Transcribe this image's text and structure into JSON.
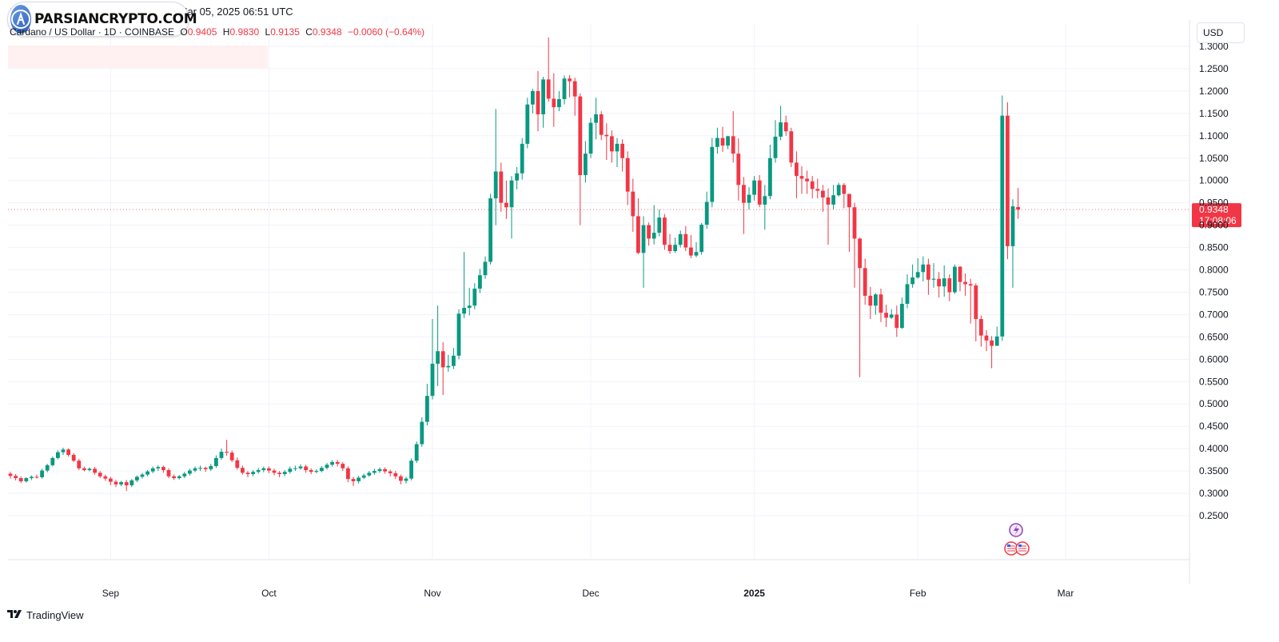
{
  "header": {
    "caption": "ADAUSD chart by TradingView.com, Mar 05, 2025 06:51 UTC",
    "logo_text": "PARSIANCRYPTO.COM"
  },
  "symbol_bar": {
    "title": "Cardano / US Dollar · 1D · COINBASE",
    "open_label": "O",
    "open": "0.9405",
    "high_label": "H",
    "high": "0.9830",
    "low_label": "L",
    "low": "0.9135",
    "close_label": "C",
    "close": "0.9348",
    "change": "−0.0060 (−0.64%)"
  },
  "currency_button": "USD",
  "price_tag": {
    "price": "0.9348",
    "countdown": "17:08:06"
  },
  "footer": {
    "brand": "TradingView",
    "brand_icon": "tradingview-logo-icon"
  },
  "colors": {
    "up": "#089981",
    "down": "#f23645",
    "grid": "#f0f3fa",
    "text": "#131722"
  },
  "chart_data": {
    "type": "candlestick",
    "title": "Cardano / US Dollar · 1D · COINBASE",
    "ylim": [
      0.2,
      1.32
    ],
    "y_ticks": [
      "1.3000",
      "1.2500",
      "1.2000",
      "1.1500",
      "1.1000",
      "1.0500",
      "1.0000",
      "0.9500",
      "0.9000",
      "0.8500",
      "0.8000",
      "0.7500",
      "0.7000",
      "0.6500",
      "0.6000",
      "0.5500",
      "0.5000",
      "0.4500",
      "0.4000",
      "0.3500",
      "0.3000",
      "0.2500"
    ],
    "x_labels": [
      {
        "label": "Sep",
        "index": 19,
        "bold": false
      },
      {
        "label": "Oct",
        "index": 49,
        "bold": false
      },
      {
        "label": "Nov",
        "index": 80,
        "bold": false
      },
      {
        "label": "Dec",
        "index": 110,
        "bold": false
      },
      {
        "label": "2025",
        "index": 141,
        "bold": true
      },
      {
        "label": "Feb",
        "index": 172,
        "bold": false
      },
      {
        "label": "Mar",
        "index": 200,
        "bold": false
      }
    ],
    "last_price": 0.9348,
    "candles_close": [
      0.339,
      0.334,
      0.327,
      0.334,
      0.337,
      0.336,
      0.351,
      0.363,
      0.379,
      0.392,
      0.398,
      0.386,
      0.373,
      0.356,
      0.352,
      0.355,
      0.346,
      0.338,
      0.333,
      0.326,
      0.32,
      0.325,
      0.318,
      0.329,
      0.337,
      0.342,
      0.349,
      0.356,
      0.359,
      0.352,
      0.338,
      0.334,
      0.338,
      0.344,
      0.351,
      0.356,
      0.357,
      0.354,
      0.361,
      0.379,
      0.393,
      0.391,
      0.374,
      0.357,
      0.346,
      0.343,
      0.348,
      0.352,
      0.356,
      0.351,
      0.346,
      0.343,
      0.348,
      0.355,
      0.356,
      0.36,
      0.352,
      0.348,
      0.35,
      0.357,
      0.364,
      0.37,
      0.366,
      0.356,
      0.332,
      0.327,
      0.335,
      0.34,
      0.346,
      0.35,
      0.354,
      0.349,
      0.345,
      0.338,
      0.328,
      0.333,
      0.373,
      0.41,
      0.46,
      0.518,
      0.59,
      0.618,
      0.582,
      0.585,
      0.608,
      0.702,
      0.715,
      0.72,
      0.758,
      0.788,
      0.818,
      0.96,
      1.02,
      0.95,
      0.94,
      1.0,
      1.016,
      1.082,
      1.17,
      1.2,
      1.148,
      1.226,
      1.183,
      1.164,
      1.182,
      1.228,
      1.222,
      1.188,
      1.012,
      1.06,
      1.129,
      1.148,
      1.102,
      1.099,
      1.065,
      1.082,
      1.05,
      0.975,
      0.92,
      0.838,
      0.9,
      0.87,
      0.883,
      0.917,
      0.856,
      0.842,
      0.856,
      0.88,
      0.85,
      0.832,
      0.84,
      0.901,
      0.952,
      1.075,
      1.095,
      1.078,
      1.099,
      1.06,
      0.99,
      0.95,
      0.968,
      1.0,
      0.946,
      0.965,
      1.05,
      1.098,
      1.13,
      1.11,
      1.04,
      1.01,
      1.004,
      0.998,
      0.981,
      0.977,
      0.962,
      0.946,
      0.967,
      0.99,
      0.97,
      0.94,
      0.87,
      0.804,
      0.742,
      0.72,
      0.745,
      0.704,
      0.693,
      0.7,
      0.67,
      0.724,
      0.768,
      0.783,
      0.795,
      0.812,
      0.778,
      0.78,
      0.763,
      0.781,
      0.75,
      0.807,
      0.773,
      0.768,
      0.765,
      0.69,
      0.653,
      0.642,
      0.63,
      0.651,
      1.145,
      0.853,
      0.942,
      0.9348
    ],
    "candles_open": [
      0.344,
      0.339,
      0.334,
      0.327,
      0.334,
      0.337,
      0.336,
      0.351,
      0.363,
      0.379,
      0.392,
      0.398,
      0.386,
      0.373,
      0.356,
      0.352,
      0.355,
      0.346,
      0.338,
      0.333,
      0.326,
      0.32,
      0.325,
      0.318,
      0.329,
      0.337,
      0.342,
      0.349,
      0.356,
      0.359,
      0.352,
      0.338,
      0.334,
      0.338,
      0.344,
      0.351,
      0.356,
      0.357,
      0.354,
      0.361,
      0.379,
      0.393,
      0.391,
      0.374,
      0.357,
      0.346,
      0.343,
      0.348,
      0.352,
      0.356,
      0.351,
      0.346,
      0.343,
      0.348,
      0.355,
      0.356,
      0.36,
      0.352,
      0.348,
      0.35,
      0.357,
      0.364,
      0.37,
      0.366,
      0.356,
      0.332,
      0.327,
      0.335,
      0.34,
      0.346,
      0.35,
      0.354,
      0.349,
      0.345,
      0.338,
      0.328,
      0.333,
      0.373,
      0.41,
      0.46,
      0.518,
      0.59,
      0.618,
      0.582,
      0.585,
      0.608,
      0.702,
      0.715,
      0.72,
      0.758,
      0.788,
      0.818,
      0.96,
      1.02,
      0.95,
      0.94,
      1.0,
      1.016,
      1.082,
      1.17,
      1.2,
      1.148,
      1.226,
      1.183,
      1.164,
      1.182,
      1.228,
      1.222,
      1.188,
      1.012,
      1.06,
      1.129,
      1.148,
      1.102,
      1.099,
      1.065,
      1.082,
      1.05,
      0.975,
      0.92,
      0.838,
      0.9,
      0.87,
      0.883,
      0.917,
      0.856,
      0.842,
      0.856,
      0.88,
      0.85,
      0.832,
      0.84,
      0.901,
      0.952,
      1.075,
      1.095,
      1.078,
      1.099,
      1.06,
      0.99,
      0.95,
      0.968,
      1.0,
      0.946,
      0.965,
      1.05,
      1.098,
      1.13,
      1.11,
      1.04,
      1.01,
      1.004,
      0.998,
      0.981,
      0.977,
      0.962,
      0.946,
      0.967,
      0.99,
      0.97,
      0.94,
      0.87,
      0.804,
      0.742,
      0.72,
      0.745,
      0.704,
      0.693,
      0.7,
      0.67,
      0.724,
      0.768,
      0.783,
      0.795,
      0.812,
      0.778,
      0.78,
      0.763,
      0.781,
      0.75,
      0.807,
      0.773,
      0.768,
      0.765,
      0.69,
      0.653,
      0.642,
      0.63,
      0.651,
      1.145,
      0.853,
      0.9405
    ],
    "candles_high": [
      0.348,
      0.343,
      0.338,
      0.336,
      0.34,
      0.342,
      0.355,
      0.366,
      0.382,
      0.396,
      0.402,
      0.401,
      0.39,
      0.377,
      0.36,
      0.358,
      0.359,
      0.35,
      0.342,
      0.337,
      0.33,
      0.328,
      0.33,
      0.332,
      0.34,
      0.346,
      0.352,
      0.36,
      0.363,
      0.362,
      0.356,
      0.342,
      0.341,
      0.348,
      0.355,
      0.36,
      0.362,
      0.36,
      0.366,
      0.385,
      0.4,
      0.42,
      0.396,
      0.38,
      0.362,
      0.35,
      0.352,
      0.357,
      0.36,
      0.36,
      0.355,
      0.35,
      0.352,
      0.36,
      0.362,
      0.365,
      0.364,
      0.356,
      0.354,
      0.361,
      0.368,
      0.374,
      0.375,
      0.37,
      0.36,
      0.337,
      0.339,
      0.344,
      0.35,
      0.355,
      0.358,
      0.358,
      0.353,
      0.35,
      0.342,
      0.337,
      0.378,
      0.416,
      0.47,
      0.545,
      0.69,
      0.72,
      0.638,
      0.61,
      0.625,
      0.712,
      0.84,
      0.76,
      0.77,
      0.802,
      0.83,
      0.97,
      1.16,
      1.04,
      1.0,
      1.01,
      1.03,
      1.095,
      1.185,
      1.205,
      1.245,
      1.232,
      1.32,
      1.24,
      1.2,
      1.235,
      1.236,
      1.23,
      1.195,
      1.088,
      1.14,
      1.185,
      1.155,
      1.128,
      1.112,
      1.095,
      1.092,
      1.065,
      1.004,
      0.96,
      0.92,
      0.906,
      0.945,
      0.935,
      0.925,
      0.88,
      0.872,
      0.888,
      0.898,
      0.878,
      0.862,
      0.905,
      0.975,
      1.095,
      1.118,
      1.12,
      1.1,
      1.155,
      1.094,
      1.008,
      0.985,
      1.01,
      1.012,
      0.99,
      1.08,
      1.135,
      1.167,
      1.145,
      1.118,
      1.065,
      1.032,
      1.022,
      1.01,
      1.004,
      0.99,
      0.982,
      0.99,
      0.995,
      0.994,
      0.97,
      0.95,
      0.872,
      0.825,
      0.762,
      0.748,
      0.758,
      0.722,
      0.712,
      0.72,
      0.738,
      0.79,
      0.812,
      0.826,
      0.83,
      0.825,
      0.815,
      0.795,
      0.81,
      0.79,
      0.812,
      0.808,
      0.792,
      0.78,
      0.77,
      0.698,
      0.665,
      0.652,
      0.673,
      1.19,
      1.175,
      0.958,
      0.983
    ],
    "candles_low": [
      0.333,
      0.329,
      0.323,
      0.324,
      0.33,
      0.333,
      0.333,
      0.347,
      0.36,
      0.376,
      0.386,
      0.382,
      0.37,
      0.352,
      0.349,
      0.349,
      0.342,
      0.334,
      0.328,
      0.318,
      0.314,
      0.316,
      0.305,
      0.314,
      0.325,
      0.333,
      0.338,
      0.345,
      0.35,
      0.346,
      0.334,
      0.33,
      0.331,
      0.334,
      0.34,
      0.347,
      0.35,
      0.348,
      0.35,
      0.357,
      0.375,
      0.384,
      0.37,
      0.353,
      0.342,
      0.336,
      0.338,
      0.344,
      0.347,
      0.345,
      0.34,
      0.336,
      0.338,
      0.344,
      0.35,
      0.353,
      0.346,
      0.343,
      0.345,
      0.347,
      0.353,
      0.36,
      0.36,
      0.35,
      0.325,
      0.316,
      0.322,
      0.332,
      0.337,
      0.342,
      0.346,
      0.344,
      0.338,
      0.332,
      0.32,
      0.322,
      0.329,
      0.368,
      0.404,
      0.452,
      0.51,
      0.54,
      0.52,
      0.572,
      0.578,
      0.6,
      0.692,
      0.698,
      0.712,
      0.748,
      0.78,
      0.812,
      0.9,
      0.93,
      0.914,
      0.87,
      0.98,
      1.002,
      1.072,
      1.15,
      1.11,
      1.118,
      1.176,
      1.12,
      1.155,
      1.17,
      1.186,
      1.145,
      0.9,
      0.995,
      1.05,
      1.092,
      1.09,
      1.046,
      1.04,
      1.03,
      1.02,
      0.945,
      0.885,
      0.835,
      0.76,
      0.854,
      0.857,
      0.875,
      0.845,
      0.836,
      0.838,
      0.85,
      0.842,
      0.826,
      0.828,
      0.834,
      0.892,
      0.94,
      1.06,
      1.064,
      1.07,
      1.04,
      0.955,
      0.88,
      0.935,
      0.955,
      0.94,
      0.89,
      0.958,
      1.04,
      1.09,
      1.1,
      1.03,
      0.96,
      0.97,
      0.97,
      0.96,
      0.96,
      0.93,
      0.856,
      0.935,
      0.964,
      0.938,
      0.84,
      0.76,
      0.56,
      0.722,
      0.69,
      0.7,
      0.683,
      0.672,
      0.69,
      0.65,
      0.668,
      0.714,
      0.76,
      0.78,
      0.774,
      0.744,
      0.76,
      0.738,
      0.74,
      0.73,
      0.746,
      0.752,
      0.742,
      0.68,
      0.64,
      0.628,
      0.618,
      0.58,
      0.64,
      0.641,
      0.824,
      0.76,
      0.914
    ]
  }
}
